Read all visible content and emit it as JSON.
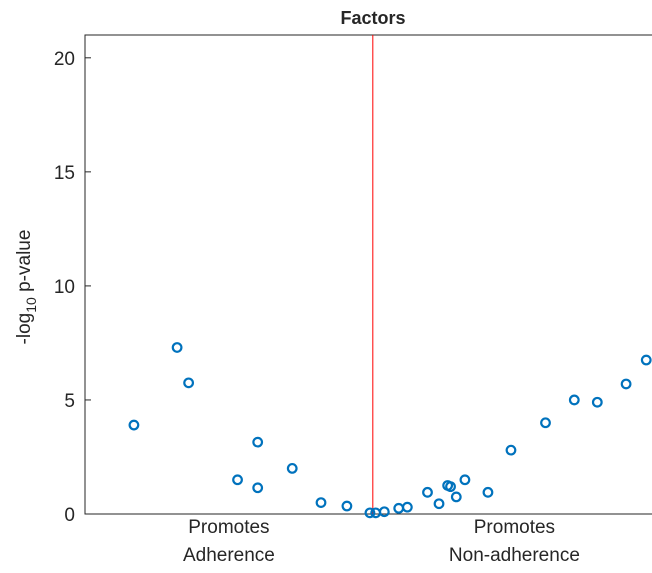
{
  "chart_data": {
    "type": "scatter",
    "title": "Factors",
    "ylabel": {
      "prefix": "-log",
      "subscript": "10",
      "suffix": " p-value"
    },
    "group_labels": [
      [
        "Promotes",
        "Adherence"
      ],
      [
        "Promotes",
        "Non-adherence"
      ]
    ],
    "xlim": [
      -1,
      0.97
    ],
    "ylim": [
      0,
      21
    ],
    "yticks": [
      0,
      5,
      10,
      15,
      20
    ],
    "grid": false,
    "vline": 0,
    "vline_color": "#ff0000",
    "series": [
      {
        "color": "#0072bd",
        "x": [
          -0.83,
          -0.68,
          -0.64,
          -0.47,
          -0.4,
          -0.4,
          -0.28,
          -0.18,
          -0.09,
          -0.01,
          0.01,
          0.04,
          0.09,
          0.12,
          0.19,
          0.23,
          0.26,
          0.27,
          0.29,
          0.32,
          0.4,
          0.48,
          0.6,
          0.7,
          0.78,
          0.88,
          0.95
        ],
        "values": [
          3.9,
          7.3,
          5.75,
          1.5,
          3.15,
          1.15,
          2.0,
          0.5,
          0.35,
          0.05,
          0.05,
          0.1,
          0.25,
          0.3,
          0.95,
          0.45,
          1.25,
          1.2,
          0.75,
          1.5,
          0.95,
          2.8,
          4.0,
          5.0,
          4.9,
          5.7,
          6.75
        ]
      }
    ]
  }
}
